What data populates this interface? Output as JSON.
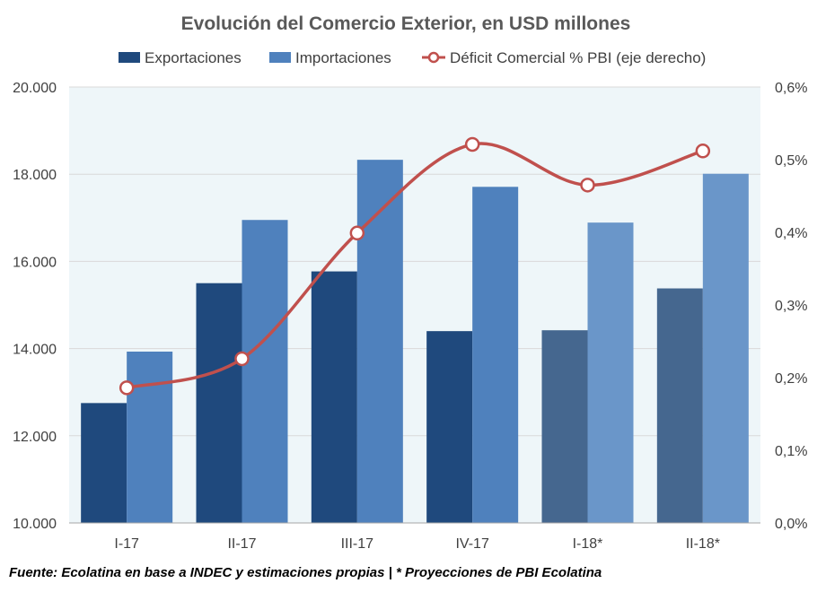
{
  "chart_data": {
    "type": "bar",
    "title": "Evolución del Comercio Exterior, en USD millones",
    "categories": [
      "I-17",
      "II-17",
      "III-17",
      "IV-17",
      "I-18*",
      "II-18*"
    ],
    "series": [
      {
        "name": "Exportaciones",
        "type": "bar",
        "axis": "left",
        "color": "#1f497d",
        "projected_color": "#45678f",
        "values": [
          12750,
          15500,
          15770,
          14400,
          14420,
          15380
        ]
      },
      {
        "name": "Importaciones",
        "type": "bar",
        "axis": "left",
        "color": "#4f81bd",
        "projected_color": "#6a96c9",
        "values": [
          13930,
          16950,
          18330,
          17710,
          16890,
          18010
        ]
      },
      {
        "name": "Déficit Comercial % PBI (eje derecho)",
        "type": "line",
        "axis": "right",
        "color": "#c0504d",
        "values": [
          0.186,
          0.226,
          0.399,
          0.521,
          0.465,
          0.512
        ]
      }
    ],
    "projected_categories": [
      "I-18*",
      "II-18*"
    ],
    "y_left": {
      "lim": [
        10000,
        20000
      ],
      "ticks": [
        "10.000",
        "12.000",
        "14.000",
        "16.000",
        "18.000",
        "20.000"
      ]
    },
    "y_right": {
      "lim": [
        0,
        0.6
      ],
      "ticks": [
        "0,0%",
        "0,1%",
        "0,2%",
        "0,3%",
        "0,4%",
        "0,5%",
        "0,6%"
      ]
    },
    "grid": true,
    "legend": "top",
    "plot_background": "#eef6f9"
  },
  "source": "Fuente: Ecolatina en base a INDEC y estimaciones propias | * Proyecciones de PBI Ecolatina"
}
